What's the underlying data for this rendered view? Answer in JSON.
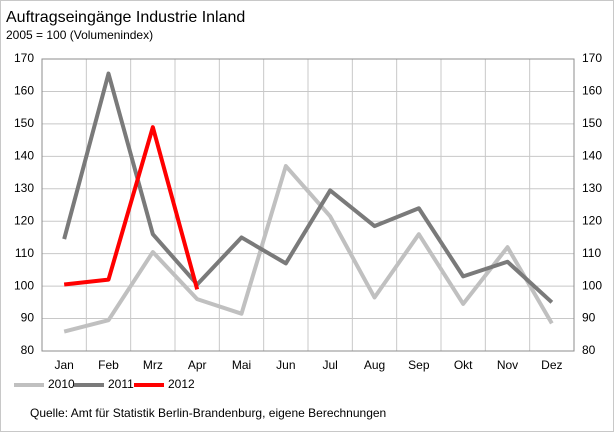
{
  "chart_data": {
    "type": "line",
    "title": "Auftragseingänge Industrie Inland",
    "subtitle": "2005 = 100 (Volumenindex)",
    "source": "Quelle: Amt für Statistik Berlin-Brandenburg, eigene Berechnungen",
    "categories": [
      "Jan",
      "Feb",
      "Mrz",
      "Apr",
      "Mai",
      "Jun",
      "Jul",
      "Aug",
      "Sep",
      "Okt",
      "Nov",
      "Dez"
    ],
    "series": [
      {
        "name": "2010",
        "color": "#c0c0c0",
        "values": [
          86,
          89.5,
          110.5,
          96,
          91.5,
          137,
          121.5,
          96.5,
          116,
          94.5,
          112,
          88.5
        ]
      },
      {
        "name": "2011",
        "color": "#7a7a7a",
        "values": [
          114.5,
          165.5,
          116,
          100.5,
          115,
          107,
          129.5,
          118.5,
          124,
          103,
          107.5,
          95
        ]
      },
      {
        "name": "2012",
        "color": "#ff0000",
        "values": [
          100.5,
          102,
          149,
          99,
          null,
          null,
          null,
          null,
          null,
          null,
          null,
          null
        ]
      }
    ],
    "ylim": [
      80,
      170
    ],
    "yticks": [
      80,
      90,
      100,
      110,
      120,
      130,
      140,
      150,
      160,
      170
    ],
    "y2lim": [
      80,
      170
    ],
    "y2ticks": [
      80,
      90,
      100,
      110,
      120,
      130,
      140,
      150,
      160,
      170
    ],
    "grid": true
  }
}
